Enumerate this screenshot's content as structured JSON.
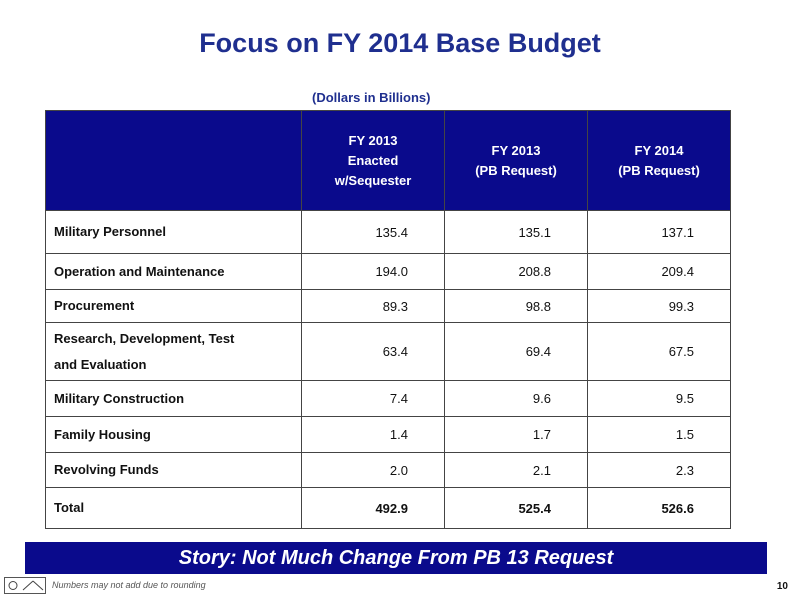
{
  "title": "Focus on FY 2014 Base Budget",
  "subtitle": "(Dollars in Billions)",
  "table": {
    "headers": [
      [
        "FY 2013",
        "Enacted",
        "w/Sequester"
      ],
      [
        "FY 2013",
        "(PB Request)"
      ],
      [
        "FY 2014",
        "(PB Request)"
      ]
    ],
    "rows": [
      {
        "label": "Military Personnel",
        "values": [
          "135.4",
          "135.1",
          "137.1"
        ]
      },
      {
        "label": "Operation and Maintenance",
        "values": [
          "194.0",
          "208.8",
          "209.4"
        ]
      },
      {
        "label": "Procurement",
        "values": [
          "89.3",
          "98.8",
          "99.3"
        ]
      },
      {
        "label_lines": [
          "Research, Development, Test",
          "and Evaluation"
        ],
        "values": [
          "63.4",
          "69.4",
          "67.5"
        ]
      },
      {
        "label": "Military Construction",
        "values": [
          "7.4",
          "9.6",
          "9.5"
        ]
      },
      {
        "label": "Family Housing",
        "values": [
          "1.4",
          "1.7",
          "1.5"
        ]
      },
      {
        "label": "Revolving Funds",
        "values": [
          "2.0",
          "2.1",
          "2.3"
        ]
      }
    ],
    "total": {
      "label": "Total",
      "values": [
        "492.9",
        "525.4",
        "526.6"
      ]
    }
  },
  "story": "Story:  Not Much Change From PB 13 Request",
  "footnote": "Numbers may not add due to rounding",
  "page_number": "10",
  "colors": {
    "title": "#1f2f8f",
    "header_bg": "#0a0a8c",
    "banner_bg": "#0a0a8c"
  }
}
